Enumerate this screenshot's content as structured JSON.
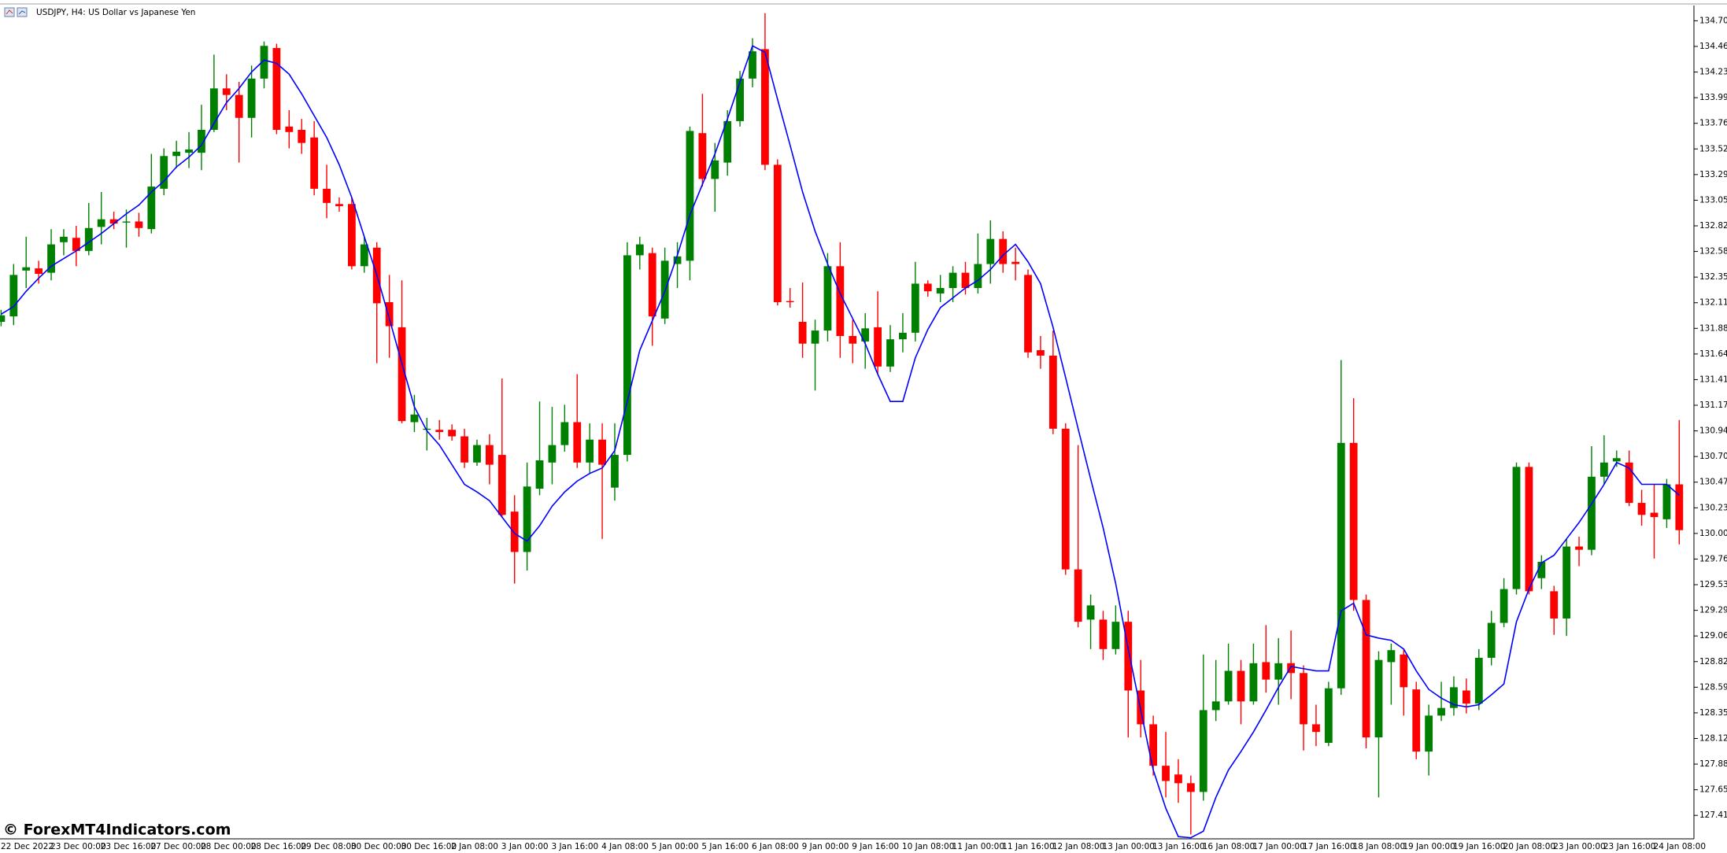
{
  "chart_data": {
    "type": "candlestick",
    "title": "USDJPY, H4:  US Dollar vs Japanese Yen",
    "watermark": "© ForexMT4Indicators.com",
    "up_color": "#008000",
    "down_color": "#ff0000",
    "categories": [
      "22 Dec 2022",
      null,
      null,
      null,
      "23 Dec 00:00",
      null,
      null,
      null,
      "23 Dec 16:00",
      null,
      null,
      null,
      "27 Dec 00:00",
      null,
      null,
      null,
      "28 Dec 00:00",
      null,
      null,
      null,
      "28 Dec 16:00",
      null,
      null,
      null,
      "29 Dec 08:00",
      null,
      null,
      null,
      "30 Dec 00:00",
      null,
      null,
      null,
      "30 Dec 16:00",
      null,
      null,
      null,
      "2 Jan 08:00",
      null,
      null,
      null,
      "3 Jan 00:00",
      null,
      null,
      null,
      "3 Jan 16:00",
      null,
      null,
      null,
      "4 Jan 08:00",
      null,
      null,
      null,
      "5 Jan 00:00",
      null,
      null,
      null,
      "5 Jan 16:00",
      null,
      null,
      null,
      "6 Jan 08:00",
      null,
      null,
      null,
      "9 Jan 00:00",
      null,
      null,
      null,
      "9 Jan 16:00",
      null,
      null,
      null,
      "10 Jan 08:00",
      null,
      null,
      null,
      "11 Jan 00:00",
      null,
      null,
      null,
      "11 Jan 16:00",
      null,
      null,
      null,
      "12 Jan 08:00",
      null,
      null,
      null,
      "13 Jan 00:00",
      null,
      null,
      null,
      "13 Jan 16:00",
      null,
      null,
      null,
      "16 Jan 08:00",
      null,
      null,
      null,
      "17 Jan 00:00",
      null,
      null,
      null,
      "17 Jan 16:00",
      null,
      null,
      null,
      "18 Jan 08:00",
      null,
      null,
      null,
      "19 Jan 00:00",
      null,
      null,
      null,
      "19 Jan 16:00",
      null,
      null,
      null,
      "20 Jan 08:00",
      null,
      null,
      null,
      "23 Jan 00:00",
      null,
      null,
      null,
      "23 Jan 16:00",
      null,
      null,
      null,
      "24 Jan 08:00",
      null,
      null
    ],
    "open": [
      131.94,
      131.99,
      132.41,
      132.43,
      132.39,
      132.67,
      132.71,
      132.59,
      132.81,
      132.88,
      132.85,
      132.86,
      132.79,
      133.16,
      133.46,
      133.49,
      133.49,
      133.7,
      134.08,
      134.02,
      133.81,
      134.17,
      134.45,
      133.73,
      133.7,
      133.63,
      133.16,
      133.02,
      133.02,
      132.45,
      132.62,
      132.12,
      131.89,
      131.02,
      130.95,
      130.95,
      130.95,
      130.89,
      130.65,
      130.81,
      130.72,
      130.2,
      129.83,
      130.41,
      130.65,
      130.81,
      131.02,
      130.65,
      130.86,
      130.42,
      130.72,
      132.55,
      132.57,
      131.97,
      132.47,
      132.5,
      133.67,
      133.25,
      133.4,
      133.78,
      134.17,
      134.44,
      133.38,
      132.13,
      131.94,
      131.74,
      131.86,
      132.45,
      131.81,
      131.76,
      131.89,
      131.53,
      131.78,
      131.84,
      132.29,
      132.2,
      132.25,
      132.39,
      132.25,
      132.47,
      132.7,
      132.49,
      132.37,
      131.68,
      131.63,
      130.96,
      129.67,
      129.21,
      129.21,
      128.94,
      129.19,
      128.56,
      128.25,
      127.87,
      127.79,
      127.71,
      127.63,
      128.38,
      128.46,
      128.74,
      128.46,
      128.82,
      128.66,
      128.81,
      128.72,
      128.25,
      128.08,
      128.58,
      130.83,
      129.39,
      128.13,
      128.82,
      128.89,
      128.57,
      128.0,
      128.33,
      128.4,
      128.56,
      128.44,
      128.86,
      129.18,
      129.49,
      130.61,
      129.59,
      129.47,
      129.22,
      129.88,
      129.85,
      130.52,
      130.66,
      130.65,
      130.28,
      130.19,
      130.13,
      130.45
    ],
    "high": [
      132.05,
      132.47,
      132.72,
      132.5,
      132.79,
      132.79,
      132.82,
      133.03,
      133.13,
      132.95,
      132.97,
      132.94,
      133.48,
      133.53,
      133.6,
      133.68,
      133.93,
      134.39,
      134.21,
      134.14,
      134.29,
      134.51,
      134.49,
      133.88,
      133.8,
      133.78,
      133.38,
      133.08,
      133.08,
      132.72,
      132.67,
      132.37,
      132.32,
      131.27,
      131.06,
      131.04,
      131.0,
      130.96,
      130.86,
      130.91,
      131.42,
      130.35,
      130.65,
      131.21,
      131.16,
      131.18,
      131.46,
      131.01,
      131.01,
      131.01,
      132.67,
      132.72,
      132.62,
      132.62,
      132.67,
      133.73,
      134.03,
      133.58,
      133.88,
      134.24,
      134.54,
      134.77,
      133.43,
      132.25,
      132.3,
      131.96,
      132.57,
      132.67,
      131.96,
      132.02,
      132.22,
      131.91,
      132.02,
      132.49,
      132.32,
      132.37,
      132.45,
      132.49,
      132.75,
      132.87,
      132.77,
      132.62,
      132.42,
      131.81,
      131.86,
      131.01,
      130.81,
      129.44,
      129.29,
      129.34,
      129.29,
      128.84,
      128.33,
      128.18,
      127.93,
      127.78,
      128.89,
      128.84,
      128.99,
      128.84,
      128.99,
      129.16,
      129.04,
      129.11,
      128.79,
      128.43,
      128.64,
      131.59,
      131.24,
      129.44,
      128.92,
      128.99,
      128.94,
      128.64,
      128.43,
      128.64,
      128.69,
      128.67,
      128.94,
      129.29,
      129.59,
      130.65,
      130.65,
      129.8,
      129.52,
      129.95,
      129.97,
      130.8,
      130.9,
      130.76,
      130.76,
      130.4,
      130.45,
      130.5,
      131.04
    ],
    "low": [
      131.9,
      131.91,
      132.25,
      132.29,
      132.32,
      132.55,
      132.45,
      132.55,
      132.65,
      132.79,
      132.62,
      132.72,
      132.75,
      133.1,
      133.35,
      133.35,
      133.33,
      133.68,
      133.88,
      133.4,
      133.63,
      134.08,
      133.66,
      133.53,
      133.48,
      133.1,
      132.89,
      132.95,
      132.42,
      132.39,
      131.56,
      131.61,
      131.01,
      130.93,
      130.76,
      130.86,
      130.85,
      130.6,
      130.62,
      130.45,
      130.15,
      129.54,
      129.66,
      130.35,
      130.45,
      130.75,
      130.6,
      130.55,
      129.95,
      130.3,
      130.66,
      132.42,
      131.72,
      131.92,
      132.25,
      132.32,
      133.18,
      132.95,
      133.28,
      133.73,
      134.09,
      133.33,
      132.09,
      132.07,
      131.61,
      131.31,
      131.76,
      131.61,
      131.56,
      131.51,
      131.46,
      131.48,
      131.66,
      131.76,
      132.17,
      132.12,
      132.12,
      132.19,
      132.2,
      132.29,
      132.39,
      132.32,
      131.61,
      131.51,
      130.91,
      129.62,
      129.14,
      128.94,
      128.84,
      128.89,
      128.13,
      128.13,
      127.78,
      127.58,
      127.53,
      127.24,
      127.55,
      128.28,
      128.43,
      128.25,
      128.43,
      128.54,
      128.43,
      128.48,
      128.01,
      128.05,
      128.05,
      128.52,
      129.29,
      128.03,
      127.58,
      128.43,
      128.33,
      127.93,
      127.78,
      128.28,
      128.33,
      128.35,
      128.38,
      128.79,
      129.14,
      129.44,
      129.44,
      129.49,
      129.07,
      129.06,
      129.7,
      129.8,
      130.45,
      130.61,
      130.25,
      130.07,
      129.77,
      130.05,
      129.9
    ],
    "close": [
      132.0,
      132.37,
      132.44,
      132.38,
      132.65,
      132.72,
      132.59,
      132.8,
      132.88,
      132.84,
      132.86,
      132.8,
      133.18,
      133.46,
      133.5,
      133.52,
      133.7,
      134.08,
      134.02,
      133.81,
      134.17,
      134.47,
      133.7,
      133.68,
      133.58,
      133.16,
      133.03,
      133.0,
      132.45,
      132.65,
      132.11,
      131.9,
      131.03,
      131.09,
      130.96,
      130.93,
      130.89,
      130.65,
      130.81,
      130.63,
      130.17,
      129.83,
      130.43,
      130.67,
      130.81,
      131.02,
      130.65,
      130.86,
      130.63,
      130.72,
      132.55,
      132.65,
      131.99,
      132.5,
      132.54,
      133.69,
      133.25,
      133.42,
      133.78,
      134.17,
      134.42,
      133.38,
      132.12,
      132.12,
      131.74,
      131.86,
      132.45,
      131.81,
      131.74,
      131.88,
      131.53,
      131.78,
      131.84,
      132.29,
      132.22,
      132.25,
      132.39,
      132.25,
      132.47,
      132.7,
      132.47,
      132.47,
      131.66,
      131.63,
      130.96,
      129.67,
      129.19,
      129.34,
      128.94,
      129.19,
      128.56,
      128.25,
      127.87,
      127.73,
      127.71,
      127.63,
      128.38,
      128.46,
      128.74,
      128.46,
      128.81,
      128.66,
      128.81,
      128.72,
      128.25,
      128.18,
      128.58,
      130.83,
      129.39,
      128.13,
      128.84,
      128.93,
      128.59,
      128.0,
      128.33,
      128.4,
      128.59,
      128.44,
      128.86,
      129.18,
      129.49,
      130.61,
      129.47,
      129.74,
      129.22,
      129.88,
      129.85,
      130.52,
      130.65,
      130.69,
      130.28,
      130.17,
      130.15,
      130.45,
      130.03
    ],
    "overlay": {
      "type": "line",
      "color": "#0000ff",
      "values": [
        132.01,
        132.08,
        132.22,
        132.34,
        132.45,
        132.52,
        132.59,
        132.67,
        132.75,
        132.84,
        132.93,
        133.01,
        133.13,
        133.23,
        133.36,
        133.45,
        133.56,
        133.76,
        133.95,
        134.08,
        134.23,
        134.34,
        134.31,
        134.21,
        134.03,
        133.83,
        133.63,
        133.38,
        133.08,
        132.72,
        132.37,
        131.97,
        131.56,
        131.16,
        130.94,
        130.81,
        130.63,
        130.45,
        130.38,
        130.3,
        130.15,
        130.0,
        129.93,
        130.07,
        130.25,
        130.38,
        130.48,
        130.55,
        130.6,
        130.76,
        131.21,
        131.68,
        131.95,
        132.22,
        132.55,
        132.92,
        133.2,
        133.48,
        133.8,
        134.14,
        134.47,
        134.41,
        133.98,
        133.56,
        133.13,
        132.77,
        132.47,
        132.2,
        131.97,
        131.74,
        131.46,
        131.21,
        131.21,
        131.61,
        131.87,
        132.07,
        132.16,
        132.25,
        132.32,
        132.42,
        132.55,
        132.65,
        132.49,
        132.29,
        131.89,
        131.43,
        130.96,
        130.5,
        130.05,
        129.54,
        128.94,
        128.38,
        127.83,
        127.48,
        127.22,
        127.21,
        127.27,
        127.58,
        127.83,
        128.0,
        128.18,
        128.38,
        128.59,
        128.78,
        128.76,
        128.74,
        128.74,
        129.29,
        129.36,
        129.07,
        129.04,
        129.02,
        128.94,
        128.74,
        128.57,
        128.49,
        128.43,
        128.41,
        128.43,
        128.52,
        128.62,
        129.19,
        129.49,
        129.73,
        129.8,
        129.95,
        130.1,
        130.27,
        130.45,
        130.65,
        130.6,
        130.45,
        130.45,
        130.45,
        130.35
      ]
    },
    "ylim": [
      127.2,
      134.84
    ],
    "yticks": [
      {
        "value": 134.7,
        "label": "134.700"
      },
      134.465,
      {
        "value": 134.23,
        "label": "134.230"
      },
      133.995,
      {
        "value": 133.76,
        "label": "133.760"
      },
      133.525,
      {
        "value": 133.29,
        "label": "133.290"
      },
      133.055,
      {
        "value": 132.82,
        "label": "132.820"
      },
      132.585,
      {
        "value": 132.35,
        "label": "132.350"
      },
      132.115,
      {
        "value": 131.88,
        "label": "131.880"
      },
      131.645,
      {
        "value": 131.41,
        "label": "131.410"
      },
      131.175,
      {
        "value": 130.94,
        "label": "130.940"
      },
      130.705,
      {
        "value": 130.47,
        "label": "130.470"
      },
      130.235,
      {
        "value": 130,
        "label": "130.000"
      },
      129.765,
      {
        "value": 129.53,
        "label": "129.530"
      },
      129.295,
      {
        "value": 129.06,
        "label": "129.060"
      },
      128.825,
      {
        "value": 128.59,
        "label": "128.590"
      },
      128.355,
      {
        "value": 128.12,
        "label": "128.120"
      },
      127.885,
      {
        "value": 127.65,
        "label": "127.650"
      },
      127.415
    ],
    "grid": false
  }
}
